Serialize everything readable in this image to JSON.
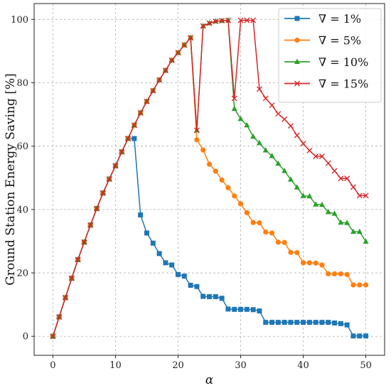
{
  "chart_data": {
    "type": "line",
    "title": "",
    "xlabel": "α",
    "ylabel": "Ground Station Energy Saving [%]",
    "xlim": [
      -3,
      53
    ],
    "ylim": [
      -6,
      105
    ],
    "x_ticks": [
      0,
      10,
      20,
      30,
      40,
      50
    ],
    "y_ticks": [
      0,
      20,
      40,
      60,
      80,
      100
    ],
    "x_tick_labels": [
      "0",
      "10",
      "20",
      "30",
      "40",
      "50"
    ],
    "y_tick_labels": [
      "0",
      "20",
      "40",
      "60",
      "80",
      "100"
    ],
    "grid": true,
    "legend_position": "top-right",
    "x": [
      0,
      1,
      2,
      3,
      4,
      5,
      6,
      7,
      8,
      9,
      10,
      11,
      12,
      13,
      14,
      15,
      16,
      17,
      18,
      19,
      20,
      21,
      22,
      23,
      24,
      25,
      26,
      27,
      28,
      29,
      30,
      31,
      32,
      33,
      34,
      35,
      36,
      37,
      38,
      39,
      40,
      41,
      42,
      43,
      44,
      45,
      46,
      47,
      48,
      49,
      50
    ],
    "series": [
      {
        "name": "∇ = 1%",
        "color": "#1f77b4",
        "marker": "square",
        "start_index": 0,
        "values": [
          0,
          6.1,
          12.2,
          18.3,
          24.2,
          29.7,
          35.1,
          40.3,
          45.2,
          49.6,
          53.8,
          58.2,
          62.4,
          62.4,
          38.3,
          32.6,
          29.4,
          26.1,
          23.2,
          22.5,
          19.5,
          19.0,
          16.1,
          15.7,
          12.6,
          12.5,
          12.5,
          12.0,
          8.6,
          8.5,
          8.5,
          8.5,
          8.4,
          8.0,
          4.4,
          4.4,
          4.4,
          4.4,
          4.4,
          4.4,
          4.4,
          4.4,
          4.4,
          4.4,
          4.4,
          4.2,
          4.0,
          3.6,
          0.1,
          0.1,
          0.1
        ]
      },
      {
        "name": "∇ = 5%",
        "color": "#ff7f0e",
        "marker": "circle",
        "start_index": 0,
        "values": [
          0,
          6.1,
          12.2,
          18.3,
          24.2,
          29.7,
          35.1,
          40.3,
          45.2,
          49.6,
          53.8,
          58.2,
          62.4,
          66.6,
          70.5,
          74.1,
          77.5,
          80.9,
          83.9,
          87.1,
          89.5,
          91.9,
          94.2,
          62.0,
          58.8,
          54.3,
          52.1,
          49.3,
          46.9,
          44.3,
          41.8,
          39.0,
          35.9,
          35.8,
          32.9,
          32.6,
          29.7,
          29.6,
          26.5,
          26.4,
          23.2,
          23.2,
          23.1,
          22.5,
          19.7,
          19.7,
          19.7,
          19.5,
          16.2,
          16.2,
          16.2
        ]
      },
      {
        "name": "∇ = 10%",
        "color": "#2ca02c",
        "marker": "triangle",
        "start_index": 0,
        "values": [
          0,
          6.1,
          12.2,
          18.3,
          24.2,
          29.7,
          35.1,
          40.3,
          45.2,
          49.6,
          53.8,
          58.2,
          62.4,
          66.6,
          70.5,
          74.1,
          77.5,
          80.9,
          83.9,
          87.1,
          89.5,
          91.9,
          94.2,
          65.0,
          97.9,
          98.8,
          99.4,
          99.6,
          99.7,
          71.8,
          68.6,
          66.6,
          63.0,
          61.0,
          58.7,
          56.9,
          54.5,
          52.2,
          49.5,
          47.0,
          44.3,
          44.2,
          41.6,
          41.5,
          39.2,
          38.7,
          35.9,
          35.8,
          33.0,
          33.0,
          29.9
        ]
      },
      {
        "name": "∇ = 15%",
        "color": "#d62728",
        "marker": "x",
        "start_index": 0,
        "values": [
          0,
          6.1,
          12.2,
          18.3,
          24.2,
          29.7,
          35.1,
          40.3,
          45.2,
          49.6,
          53.8,
          58.2,
          62.4,
          66.6,
          70.5,
          74.1,
          77.5,
          80.9,
          83.9,
          87.1,
          89.5,
          91.9,
          94.2,
          65.0,
          97.9,
          98.8,
          99.4,
          99.6,
          99.7,
          75.1,
          99.7,
          99.7,
          99.7,
          78.0,
          75.1,
          72.9,
          70.2,
          68.5,
          66.4,
          63.4,
          60.8,
          58.6,
          56.8,
          56.8,
          54.6,
          52.2,
          49.8,
          49.8,
          47.1,
          44.4,
          44.4
        ]
      }
    ]
  }
}
